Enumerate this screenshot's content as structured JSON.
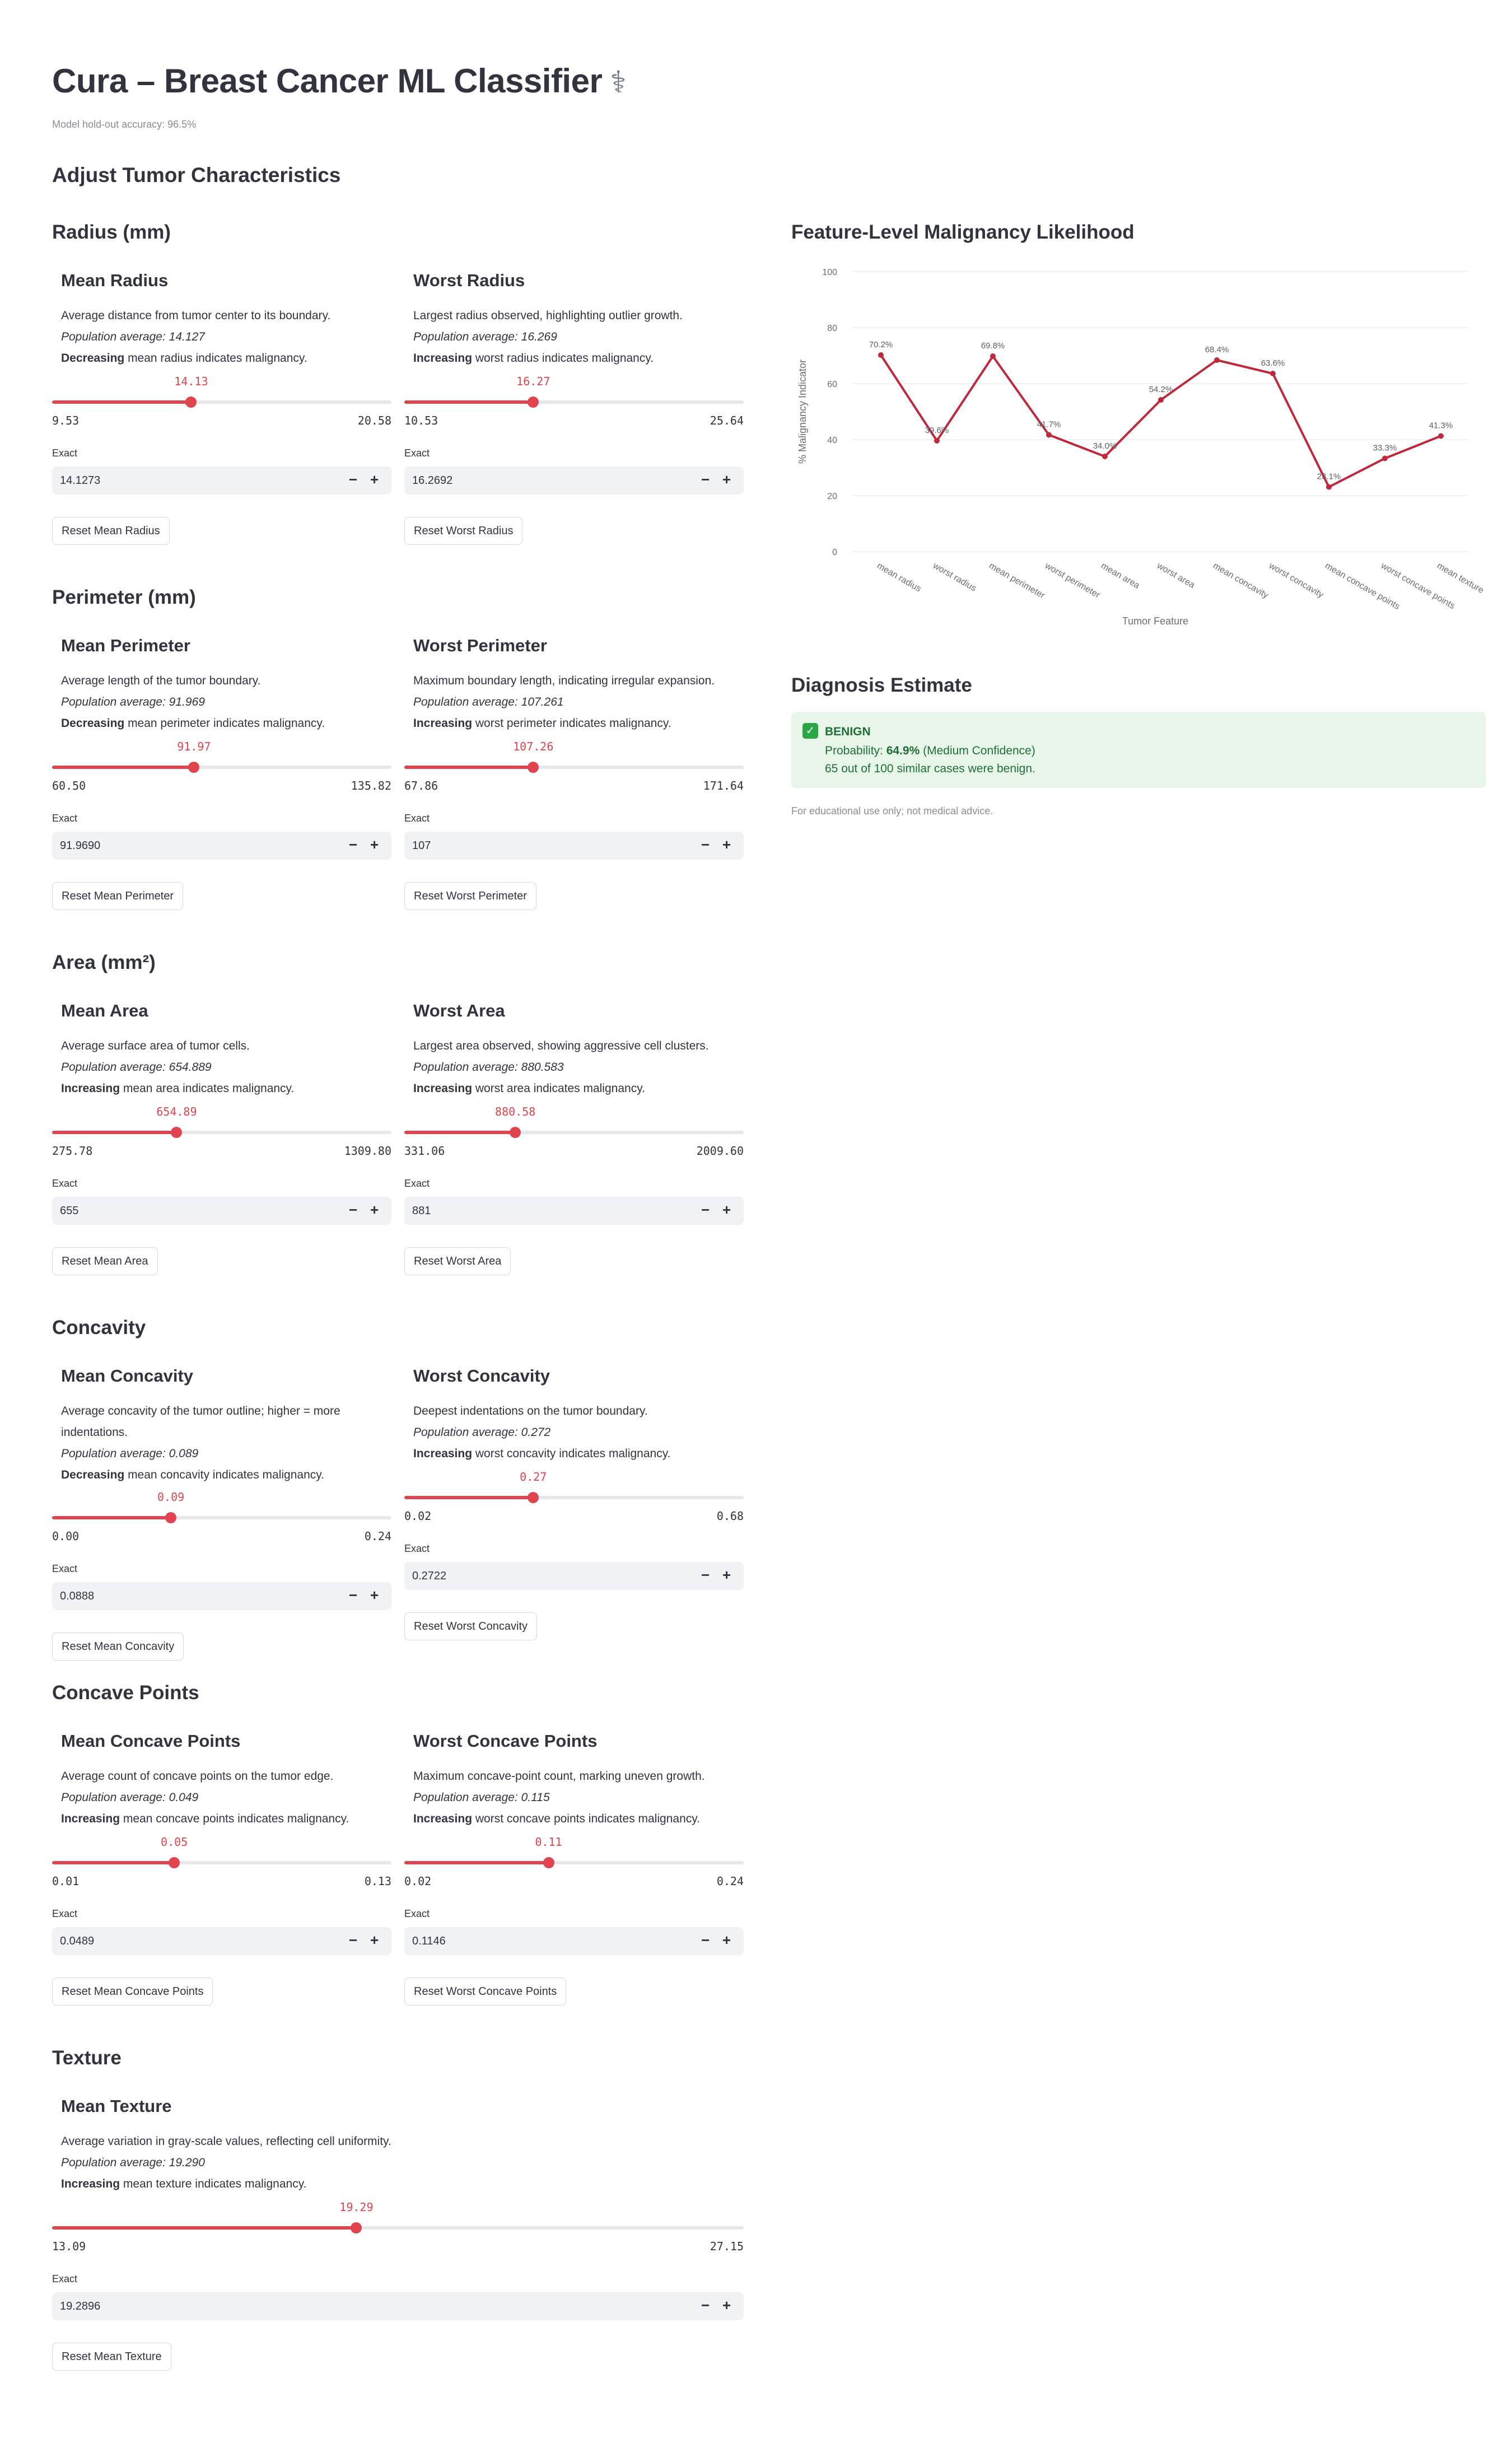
{
  "app": {
    "title": "Cura – Breast Cancer ML Classifier",
    "title_icon": "stethoscope-icon",
    "caption": "Model hold-out accuracy: 96.5%"
  },
  "adjust_header": "Adjust Tumor Characteristics",
  "sections": [
    {
      "title": "Radius (mm)",
      "features": [
        {
          "name": "Mean Radius",
          "description": "Average distance from tumor center to its boundary.",
          "population_avg": "Population average: 14.127",
          "direction_word": "Decreasing",
          "direction_rest": " mean radius indicates malignancy.",
          "slider_value": "14.13",
          "min": "9.53",
          "max": "20.58",
          "fill": 0.41,
          "exact_label": "Exact",
          "exact_value": "14.1273",
          "reset_label": "Reset Mean Radius"
        },
        {
          "name": "Worst Radius",
          "description": "Largest radius observed, highlighting outlier growth.",
          "population_avg": "Population average: 16.269",
          "direction_word": "Increasing",
          "direction_rest": " worst radius indicates malignancy.",
          "slider_value": "16.27",
          "min": "10.53",
          "max": "25.64",
          "fill": 0.38,
          "exact_label": "Exact",
          "exact_value": "16.2692",
          "reset_label": "Reset Worst Radius"
        }
      ]
    },
    {
      "title": "Perimeter (mm)",
      "features": [
        {
          "name": "Mean Perimeter",
          "description": "Average length of the tumor boundary.",
          "population_avg": "Population average: 91.969",
          "direction_word": "Decreasing",
          "direction_rest": " mean perimeter indicates malignancy.",
          "slider_value": "91.97",
          "min": "60.50",
          "max": "135.82",
          "fill": 0.418,
          "exact_label": "Exact",
          "exact_value": "91.9690",
          "reset_label": "Reset Mean Perimeter"
        },
        {
          "name": "Worst Perimeter",
          "description": "Maximum boundary length, indicating irregular expansion.",
          "population_avg": "Population average: 107.261",
          "direction_word": "Increasing",
          "direction_rest": " worst perimeter indicates malignancy.",
          "slider_value": "107.26",
          "min": "67.86",
          "max": "171.64",
          "fill": 0.38,
          "exact_label": "Exact",
          "exact_value": "107",
          "reset_label": "Reset Worst Perimeter"
        }
      ]
    },
    {
      "title": "Area (mm²)",
      "features": [
        {
          "name": "Mean Area",
          "description": "Average surface area of tumor cells.",
          "population_avg": "Population average: 654.889",
          "direction_word": "Increasing",
          "direction_rest": " mean area indicates malignancy.",
          "slider_value": "654.89",
          "min": "275.78",
          "max": "1309.80",
          "fill": 0.367,
          "exact_label": "Exact",
          "exact_value": "655",
          "reset_label": "Reset Mean Area"
        },
        {
          "name": "Worst Area",
          "description": "Largest area observed, showing aggressive cell clusters.",
          "population_avg": "Population average: 880.583",
          "direction_word": "Increasing",
          "direction_rest": " worst area indicates malignancy.",
          "slider_value": "880.58",
          "min": "331.06",
          "max": "2009.60",
          "fill": 0.327,
          "exact_label": "Exact",
          "exact_value": "881",
          "reset_label": "Reset Worst Area"
        }
      ]
    },
    {
      "title": "Concavity",
      "features": [
        {
          "name": "Mean Concavity",
          "description": "Average concavity of the tumor outline; higher = more indentations.",
          "population_avg": "Population average: 0.089",
          "direction_word": "Decreasing",
          "direction_rest": " mean concavity indicates malignancy.",
          "slider_value": "0.09",
          "min": "0.00",
          "max": "0.24",
          "fill": 0.35,
          "exact_label": "Exact",
          "exact_value": "0.0888",
          "reset_label": "Reset Mean Concavity"
        },
        {
          "name": "Worst Concavity",
          "description": "Deepest indentations on the tumor boundary.",
          "population_avg": "Population average: 0.272",
          "direction_word": "Increasing",
          "direction_rest": " worst concavity indicates malignancy.",
          "slider_value": "0.27",
          "min": "0.02",
          "max": "0.68",
          "fill": 0.38,
          "exact_label": "Exact",
          "exact_value": "0.2722",
          "reset_label": "Reset Worst Concavity"
        }
      ]
    },
    {
      "title": "Concave Points",
      "features": [
        {
          "name": "Mean Concave Points",
          "description": "Average count of concave points on the tumor edge.",
          "population_avg": "Population average: 0.049",
          "direction_word": "Increasing",
          "direction_rest": " mean concave points indicates malignancy.",
          "slider_value": "0.05",
          "min": "0.01",
          "max": "0.13",
          "fill": 0.36,
          "exact_label": "Exact",
          "exact_value": "0.0489",
          "reset_label": "Reset Mean Concave Points"
        },
        {
          "name": "Worst Concave Points",
          "description": "Maximum concave-point count, marking uneven growth.",
          "population_avg": "Population average: 0.115",
          "direction_word": "Increasing",
          "direction_rest": " worst concave points indicates malignancy.",
          "slider_value": "0.11",
          "min": "0.02",
          "max": "0.24",
          "fill": 0.425,
          "exact_label": "Exact",
          "exact_value": "0.1146",
          "reset_label": "Reset Worst Concave Points"
        }
      ]
    },
    {
      "title": "Texture",
      "features": [
        {
          "name": "Mean Texture",
          "description": "Average variation in gray-scale values, reflecting cell uniformity.",
          "population_avg": "Population average: 19.290",
          "direction_word": "Increasing",
          "direction_rest": " mean texture indicates malignancy.",
          "slider_value": "19.29",
          "min": "13.09",
          "max": "27.15",
          "fill": 0.44,
          "exact_label": "Exact",
          "exact_value": "19.2896",
          "reset_label": "Reset Mean Texture"
        }
      ]
    }
  ],
  "chart_title": "Feature-Level Malignancy Likelihood",
  "chart_data": {
    "type": "line",
    "title": "",
    "xlabel": "Tumor Feature",
    "ylabel": "% Malignancy Indicator",
    "ylim": [
      0,
      100
    ],
    "yticks": [
      "0",
      "20",
      "40",
      "60",
      "80",
      "100"
    ],
    "grid": true,
    "line_color": "#c0283b",
    "categories": [
      "mean radius",
      "worst radius",
      "mean perimeter",
      "worst perimeter",
      "mean area",
      "worst area",
      "mean concavity",
      "worst concavity",
      "mean concave points",
      "worst concave points",
      "mean texture"
    ],
    "values": [
      70.2,
      39.6,
      69.8,
      41.7,
      34.0,
      54.2,
      68.4,
      63.6,
      23.1,
      33.3,
      41.3
    ],
    "data_labels": [
      "70.2%",
      "39.6%",
      "69.8%",
      "41.7%",
      "34.0%",
      "54.2%",
      "68.4%",
      "63.6%",
      "23.1%",
      "33.3%",
      "41.3%"
    ]
  },
  "diagnosis": {
    "header": "Diagnosis Estimate",
    "status_icon": "check-icon",
    "label": "BENIGN",
    "prob_prefix": "Probability: ",
    "prob_value": "64.9%",
    "prob_suffix": " (Medium Confidence)",
    "similar": "65 out of 100 similar cases were benign.",
    "color": "#1e6f34",
    "background": "#e8f5e9",
    "footnote": "For educational use only; not medical advice."
  },
  "colors": {
    "accent": "#e0454f",
    "text": "#31333f"
  }
}
